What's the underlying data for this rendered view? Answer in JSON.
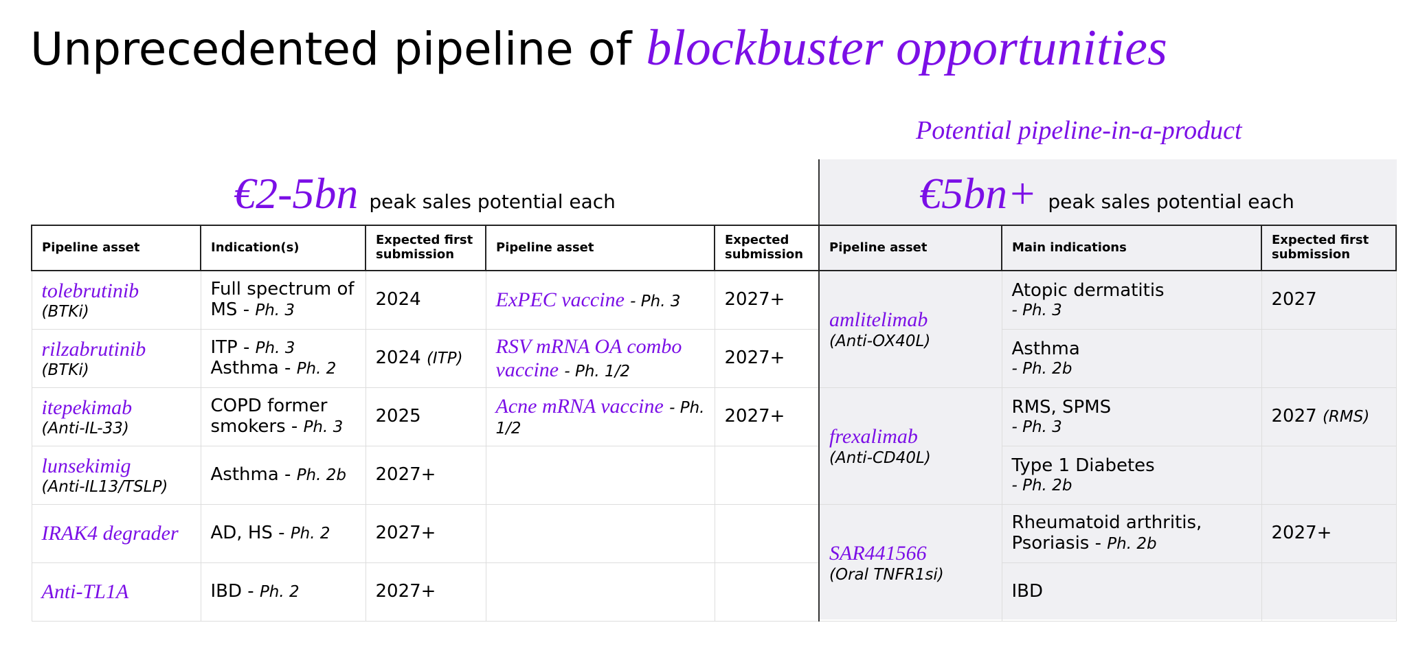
{
  "title": {
    "plain": "Unprecedented pipeline of",
    "emphasis": "blockbuster opportunities"
  },
  "left": {
    "heading_value": "€2-5bn",
    "heading_text": "peak sales potential each",
    "columns": [
      "Pipeline asset",
      "Indication(s)",
      "Expected first submission",
      "Pipeline asset",
      "Expected submission"
    ],
    "rows": [
      {
        "asset": "tolebrutinib",
        "class": "(BTKi)",
        "indications": [
          {
            "text": "Full spectrum of MS -",
            "phase": "Ph. 3"
          }
        ],
        "submission": "2024",
        "vaccine": "ExPEC vaccine",
        "vaccine_phase": "- Ph. 3",
        "vaccine_submission": "2027+"
      },
      {
        "asset": "rilzabrutinib",
        "class": "(BTKi)",
        "indications": [
          {
            "text": "ITP -",
            "phase": "Ph. 3"
          },
          {
            "text": "Asthma -",
            "phase": "Ph. 2"
          }
        ],
        "submission": "2024",
        "submission_note": "(ITP)",
        "vaccine": "RSV mRNA OA combo vaccine",
        "vaccine_phase": "- Ph. 1/2",
        "vaccine_submission": "2027+"
      },
      {
        "asset": "itepekimab",
        "class": "(Anti-IL-33)",
        "indications": [
          {
            "text": "COPD former smokers -",
            "phase": "Ph. 3"
          }
        ],
        "submission": "2025",
        "vaccine": "Acne mRNA vaccine",
        "vaccine_phase": "- Ph. 1/2",
        "vaccine_submission": "2027+"
      },
      {
        "asset": "lunsekimig",
        "class": "(Anti-IL13/TSLP)",
        "indications": [
          {
            "text": "Asthma -",
            "phase": "Ph. 2b"
          }
        ],
        "submission": "2027+"
      },
      {
        "asset": "IRAK4 degrader",
        "indications": [
          {
            "text": "AD, HS -",
            "phase": "Ph. 2"
          }
        ],
        "submission": "2027+"
      },
      {
        "asset": "Anti-TL1A",
        "indications": [
          {
            "text": "IBD -",
            "phase": "Ph. 2"
          }
        ],
        "submission": "2027+"
      }
    ]
  },
  "right": {
    "label": "Potential pipeline-in-a-product",
    "heading_value": "€5bn+",
    "heading_text": "peak sales potential each",
    "columns": [
      "Pipeline asset",
      "Main indications",
      "Expected first submission"
    ],
    "groups": [
      {
        "asset": "amlitelimab",
        "class": "(Anti-OX40L)",
        "rows": [
          {
            "indication": "Atopic dermatitis",
            "phase": "- Ph. 3",
            "submission": "2027"
          },
          {
            "indication": "Asthma",
            "phase": "- Ph. 2b"
          }
        ]
      },
      {
        "asset": "frexalimab",
        "class": "(Anti-CD40L)",
        "rows": [
          {
            "indication": "RMS, SPMS",
            "phase": "- Ph. 3",
            "submission": "2027",
            "submission_note": "(RMS)"
          },
          {
            "indication": "Type 1 Diabetes",
            "phase": "- Ph. 2b"
          }
        ]
      },
      {
        "asset": "SAR441566",
        "class": "(Oral TNFR1si)",
        "rows": [
          {
            "indication": "Rheumatoid arthritis, Psoriasis -",
            "phase": "Ph. 2b",
            "submission": "2027+"
          },
          {
            "indication": "IBD"
          }
        ]
      }
    ]
  }
}
